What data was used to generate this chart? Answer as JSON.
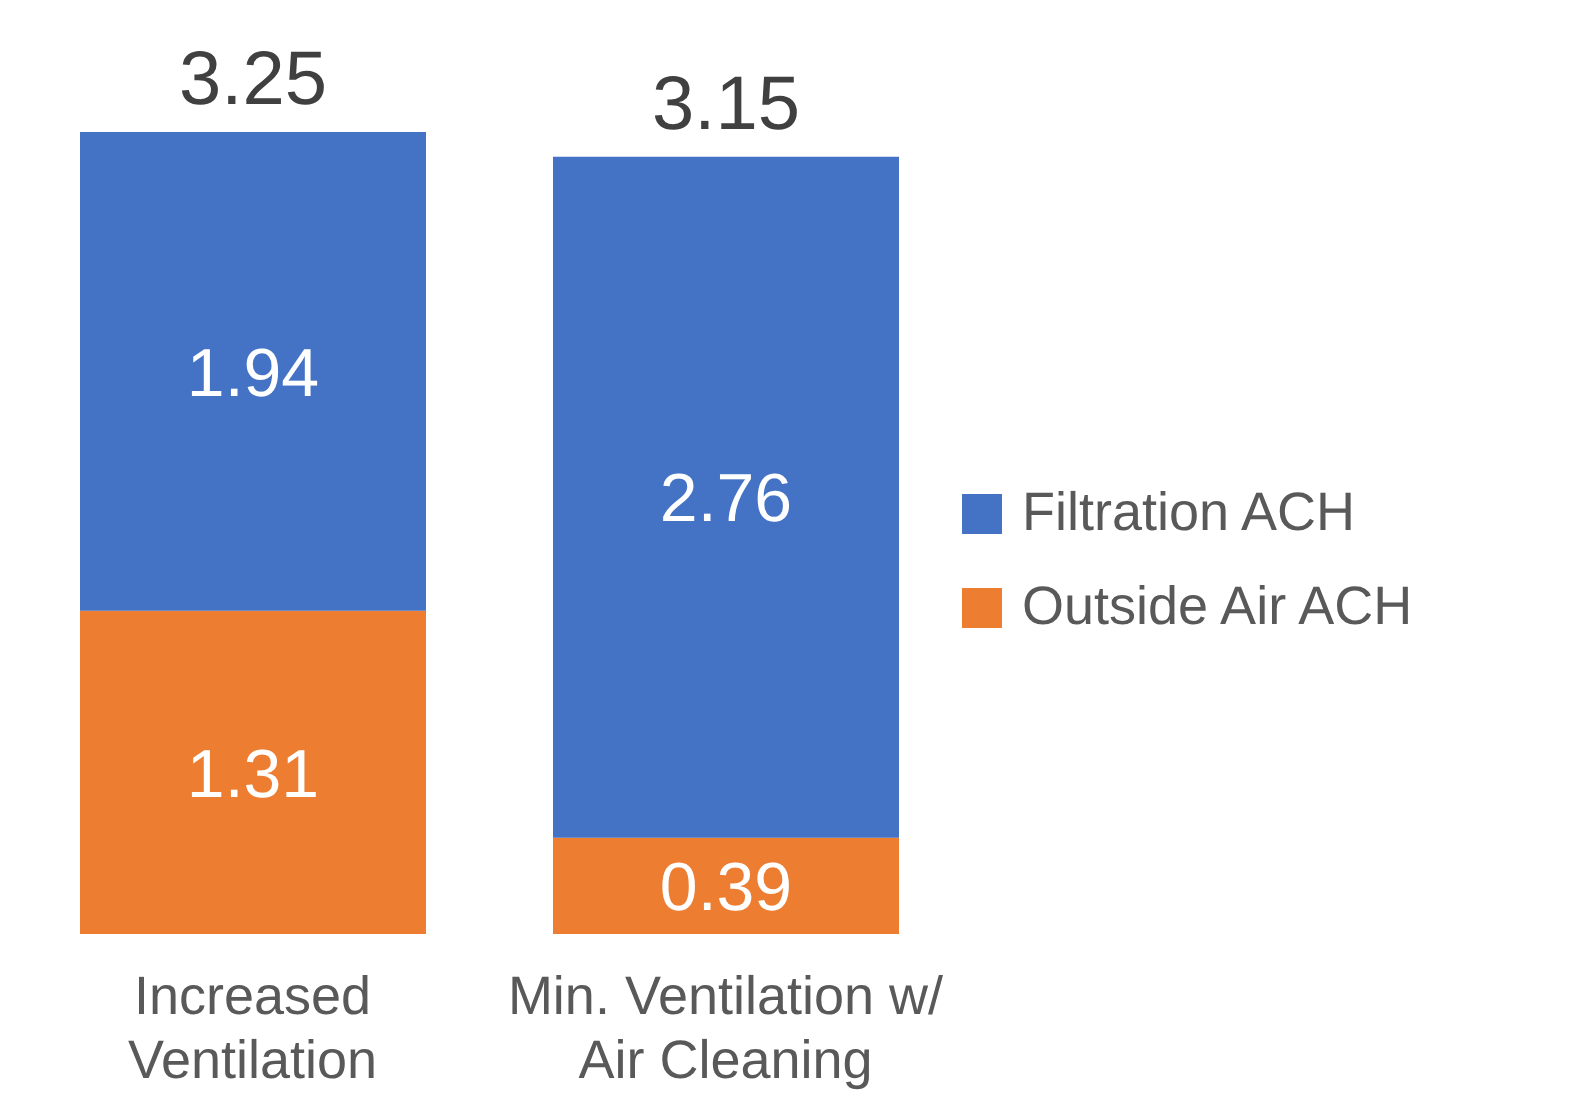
{
  "chart_data": {
    "type": "bar",
    "stacked": true,
    "categories": [
      "Increased Ventilation",
      "Min. Ventilation w/ Air Cleaning"
    ],
    "series": [
      {
        "name": "Outside Air ACH",
        "color": "#ed7d31",
        "values": [
          1.31,
          0.39
        ]
      },
      {
        "name": "Filtration ACH",
        "color": "#4472c4",
        "values": [
          1.94,
          2.76
        ]
      }
    ],
    "data_labels": true,
    "totals": [
      "3.25",
      "3.15"
    ],
    "legend": "right",
    "grid": false
  }
}
